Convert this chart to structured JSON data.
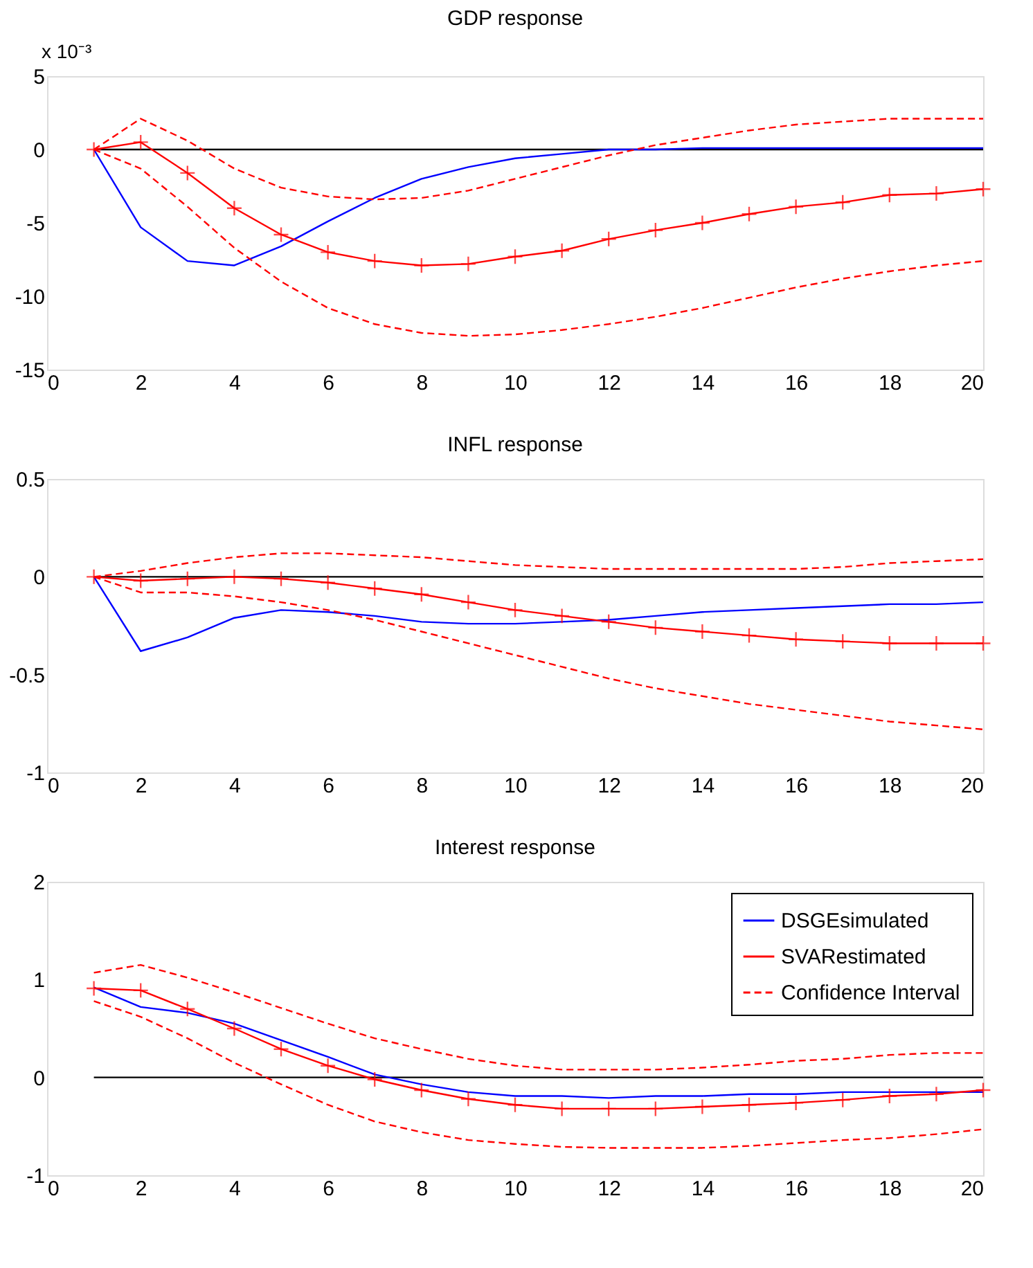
{
  "chart_data": [
    {
      "type": "line",
      "title": "GDP response",
      "annotations": [
        "x 10⁻³"
      ],
      "x": [
        1,
        2,
        3,
        4,
        5,
        6,
        7,
        8,
        9,
        10,
        11,
        12,
        13,
        14,
        15,
        16,
        17,
        18,
        19,
        20
      ],
      "xlim": [
        0,
        20
      ],
      "xticks": [
        0,
        2,
        4,
        6,
        8,
        10,
        12,
        14,
        16,
        18,
        20
      ],
      "ylim": [
        -15,
        5
      ],
      "yticks": [
        -15,
        -10,
        -5,
        0,
        5
      ],
      "grid": false,
      "legend": false,
      "series": [
        {
          "color": "#000000",
          "values": [
            0,
            0,
            0,
            0,
            0,
            0,
            0,
            0,
            0,
            0,
            0,
            0,
            0,
            0,
            0,
            0,
            0,
            0,
            0,
            0
          ],
          "line_style": "solid",
          "marker": "none"
        },
        {
          "color": "#0000ff",
          "line_style": "solid",
          "marker": "none",
          "values": [
            0,
            -5.3,
            -7.6,
            -7.9,
            -6.6,
            -4.9,
            -3.3,
            -2.0,
            -1.2,
            -0.6,
            -0.3,
            0,
            0,
            0.1,
            0.1,
            0.1,
            0.1,
            0.1,
            0.1,
            0.1
          ]
        },
        {
          "color": "#ff0000",
          "line_style": "solid",
          "marker": "cross",
          "values": [
            0,
            0.5,
            -1.6,
            -4.0,
            -5.8,
            -7.0,
            -7.6,
            -7.9,
            -7.8,
            -7.3,
            -6.9,
            -6.1,
            -5.5,
            -5.0,
            -4.4,
            -3.9,
            -3.6,
            -3.1,
            -3.0,
            -2.7
          ]
        },
        {
          "color": "#ff0000",
          "line_style": "dashed",
          "marker": "none",
          "values": [
            0,
            2.1,
            0.6,
            -1.3,
            -2.6,
            -3.2,
            -3.4,
            -3.3,
            -2.8,
            -2.0,
            -1.2,
            -0.4,
            0.3,
            0.8,
            1.3,
            1.7,
            1.9,
            2.1,
            2.1,
            2.1
          ]
        },
        {
          "color": "#ff0000",
          "line_style": "dashed",
          "marker": "none",
          "values": [
            0,
            -1.3,
            -3.9,
            -6.7,
            -9.0,
            -10.8,
            -11.9,
            -12.5,
            -12.7,
            -12.6,
            -12.3,
            -11.9,
            -11.4,
            -10.8,
            -10.1,
            -9.4,
            -8.8,
            -8.3,
            -7.9,
            -7.6
          ]
        }
      ]
    },
    {
      "type": "line",
      "title": "INFL response",
      "x": [
        1,
        2,
        3,
        4,
        5,
        6,
        7,
        8,
        9,
        10,
        11,
        12,
        13,
        14,
        15,
        16,
        17,
        18,
        19,
        20
      ],
      "xlim": [
        0,
        20
      ],
      "xticks": [
        0,
        2,
        4,
        6,
        8,
        10,
        12,
        14,
        16,
        18,
        20
      ],
      "ylim": [
        -1,
        0.5
      ],
      "yticks": [
        -1,
        -0.5,
        0,
        0.5
      ],
      "grid": false,
      "legend": false,
      "series": [
        {
          "color": "#000000",
          "values": [
            0,
            0,
            0,
            0,
            0,
            0,
            0,
            0,
            0,
            0,
            0,
            0,
            0,
            0,
            0,
            0,
            0,
            0,
            0,
            0
          ],
          "line_style": "solid",
          "marker": "none"
        },
        {
          "color": "#0000ff",
          "line_style": "solid",
          "marker": "none",
          "values": [
            0,
            -0.38,
            -0.31,
            -0.21,
            -0.17,
            -0.18,
            -0.2,
            -0.23,
            -0.24,
            -0.24,
            -0.23,
            -0.22,
            -0.2,
            -0.18,
            -0.17,
            -0.16,
            -0.15,
            -0.14,
            -0.14,
            -0.13
          ]
        },
        {
          "color": "#ff0000",
          "line_style": "solid",
          "marker": "cross",
          "values": [
            0,
            -0.02,
            -0.01,
            0,
            -0.01,
            -0.03,
            -0.06,
            -0.09,
            -0.13,
            -0.17,
            -0.2,
            -0.23,
            -0.26,
            -0.28,
            -0.3,
            -0.32,
            -0.33,
            -0.34,
            -0.34,
            -0.34
          ]
        },
        {
          "color": "#ff0000",
          "line_style": "dashed",
          "marker": "none",
          "values": [
            0,
            0.03,
            0.07,
            0.1,
            0.12,
            0.12,
            0.11,
            0.1,
            0.08,
            0.06,
            0.05,
            0.04,
            0.04,
            0.04,
            0.04,
            0.04,
            0.05,
            0.07,
            0.08,
            0.09
          ]
        },
        {
          "color": "#ff0000",
          "line_style": "dashed",
          "marker": "none",
          "values": [
            0,
            -0.08,
            -0.08,
            -0.1,
            -0.13,
            -0.17,
            -0.22,
            -0.28,
            -0.34,
            -0.4,
            -0.46,
            -0.52,
            -0.57,
            -0.61,
            -0.65,
            -0.68,
            -0.71,
            -0.74,
            -0.76,
            -0.78
          ]
        }
      ]
    },
    {
      "type": "line",
      "title": "Interest response",
      "x": [
        1,
        2,
        3,
        4,
        5,
        6,
        7,
        8,
        9,
        10,
        11,
        12,
        13,
        14,
        15,
        16,
        17,
        18,
        19,
        20
      ],
      "xlim": [
        0,
        20
      ],
      "xticks": [
        0,
        2,
        4,
        6,
        8,
        10,
        12,
        14,
        16,
        18,
        20
      ],
      "ylim": [
        -1,
        2
      ],
      "yticks": [
        -1,
        0,
        1,
        2
      ],
      "grid": false,
      "legend": "top right",
      "series": [
        {
          "color": "#000000",
          "values": [
            0,
            0,
            0,
            0,
            0,
            0,
            0,
            0,
            0,
            0,
            0,
            0,
            0,
            0,
            0,
            0,
            0,
            0,
            0,
            0
          ],
          "line_style": "solid",
          "marker": "none"
        },
        {
          "name": "DSGEsimulated",
          "color": "#0000ff",
          "line_style": "solid",
          "marker": "none",
          "values": [
            0.92,
            0.72,
            0.66,
            0.55,
            0.38,
            0.21,
            0.03,
            -0.07,
            -0.15,
            -0.19,
            -0.19,
            -0.21,
            -0.19,
            -0.19,
            -0.17,
            -0.17,
            -0.15,
            -0.15,
            -0.15,
            -0.15
          ]
        },
        {
          "name": "SVARestimated",
          "color": "#ff0000",
          "line_style": "solid",
          "marker": "cross",
          "values": [
            0.91,
            0.89,
            0.7,
            0.5,
            0.29,
            0.12,
            -0.02,
            -0.13,
            -0.22,
            -0.28,
            -0.32,
            -0.32,
            -0.32,
            -0.3,
            -0.28,
            -0.26,
            -0.23,
            -0.19,
            -0.17,
            -0.13
          ]
        },
        {
          "name": "Confidence Interval",
          "color": "#ff0000",
          "line_style": "dashed",
          "marker": "none",
          "values": [
            1.07,
            1.15,
            1.02,
            0.87,
            0.71,
            0.55,
            0.4,
            0.29,
            0.19,
            0.12,
            0.08,
            0.08,
            0.08,
            0.1,
            0.13,
            0.17,
            0.19,
            0.23,
            0.25,
            0.25
          ]
        },
        {
          "color": "#ff0000",
          "line_style": "dashed",
          "marker": "none",
          "values": [
            0.78,
            0.62,
            0.4,
            0.15,
            -0.07,
            -0.28,
            -0.45,
            -0.56,
            -0.64,
            -0.68,
            -0.71,
            -0.72,
            -0.72,
            -0.72,
            -0.7,
            -0.67,
            -0.64,
            -0.62,
            -0.58,
            -0.53
          ]
        }
      ]
    }
  ]
}
